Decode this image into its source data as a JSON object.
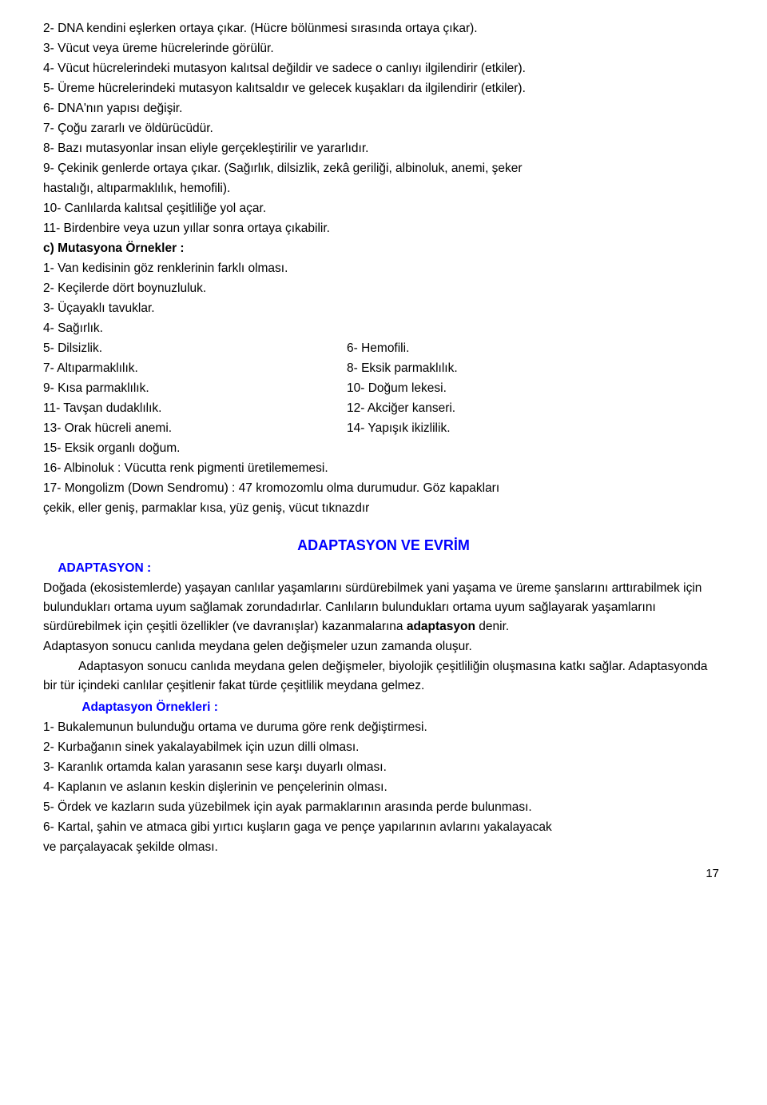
{
  "intro": [
    "2-    DNA kendini eşlerken ortaya çıkar. (Hücre bölünmesi sırasında ortaya çıkar).",
    "3-    Vücut veya üreme hücrelerinde görülür.",
    "4-    Vücut hücrelerindeki mutasyon kalıtsal değildir ve sadece o canlıyı ilgilendirir (etkiler).",
    "5-    Üreme hücrelerindeki mutasyon kalıtsaldır ve gelecek kuşakları da ilgilendirir (etkiler).",
    "6-    DNA'nın yapısı değişir.",
    "7-    Çoğu zararlı ve öldürücüdür.",
    "8-    Bazı mutasyonlar insan eliyle gerçekleştirilir ve yararlıdır.",
    "9-    Çekinik genlerde ortaya çıkar. (Sağırlık, dilsizlik, zekâ geriliği, albinoluk, anemi, şeker",
    "hastalığı, altıparmaklılık, hemofili).",
    "10-   Canlılarda kalıtsal çeşitliliğe yol açar.",
    "11-   Birdenbire veya uzun yıllar sonra ortaya çıkabilir."
  ],
  "section_c_label": "c)    Mutasyona Örnekler      :",
  "section_c_single": [
    "1-    Van kedisinin göz renklerinin farklı olması.",
    "2-    Keçilerde dört boynuzluluk.",
    "3-    Üçayaklı tavuklar.",
    "4-    Sağırlık."
  ],
  "section_c_pairs": [
    {
      "left": "5-    Dilsizlik.",
      "right": "6-    Hemofili."
    },
    {
      "left": "7-    Altıparmaklılık.",
      "right": "8-    Eksik parmaklılık."
    },
    {
      "left": "9-    Kısa parmaklılık.",
      "right": "10-   Doğum lekesi."
    },
    {
      "left": "11-   Tavşan dudaklılık.",
      "right": "12-   Akciğer kanseri."
    },
    {
      "left": "13-   Orak hücreli anemi.",
      "right": "14-   Yapışık ikizlilik."
    }
  ],
  "section_c_tail": [
    "15-   Eksik organlı doğum.",
    "16-   Albinoluk    :          Vücutta renk pigmenti üretilememesi.",
    "17-   Mongolizm (Down Sendromu)    :           47 kromozomlu olma durumudur. Göz kapakları",
    "çekik, eller geniş, parmaklar kısa, yüz geniş, vücut tıknazdır"
  ],
  "adaptasyon_title": "ADAPTASYON VE EVRİM",
  "adaptasyon_label": "ADAPTASYON    :",
  "adaptasyon_body": [
    "Doğada (ekosistemlerde) yaşayan canlılar yaşamlarını sürdürebilmek yani yaşama ve üreme şanslarını arttırabilmek için bulundukları ortama uyum sağlamak zorundadırlar. Canlıların bulundukları ortama uyum sağlayarak yaşamlarını sürdürebilmek için çeşitli özellikler (ve davranışlar) kazanmalarına",
    "adaptasyon",
    "denir.",
    "Adaptasyon sonucu canlıda meydana gelen değişmeler uzun zamanda oluşur.",
    "Adaptasyon sonucu canlıda meydana gelen değişmeler, biyolojik çeşitliliğin oluşmasına katkı sağlar. Adaptasyonda bir tür içindeki canlılar çeşitlenir fakat türde çeşitlilik meydana gelmez."
  ],
  "ornekler_label": "Adaptasyon Örnekleri    :",
  "ornekler": [
    "1-    Bukalemunun bulunduğu ortama ve duruma göre renk değiştirmesi.",
    "2-    Kurbağanın sinek yakalayabilmek için uzun dilli olması.",
    "3-    Karanlık ortamda kalan yarasanın sese karşı duyarlı olması.",
    "4-    Kaplanın ve aslanın keskin dişlerinin ve pençelerinin olması.",
    "5-    Ördek ve kazların suda yüzebilmek için ayak parmaklarının arasında perde bulunması.",
    "6-    Kartal, şahin ve atmaca gibi yırtıcı kuşların gaga ve pençe yapılarının avlarını yakalayacak",
    "ve parçalayacak şekilde olması."
  ],
  "page_number": "17"
}
